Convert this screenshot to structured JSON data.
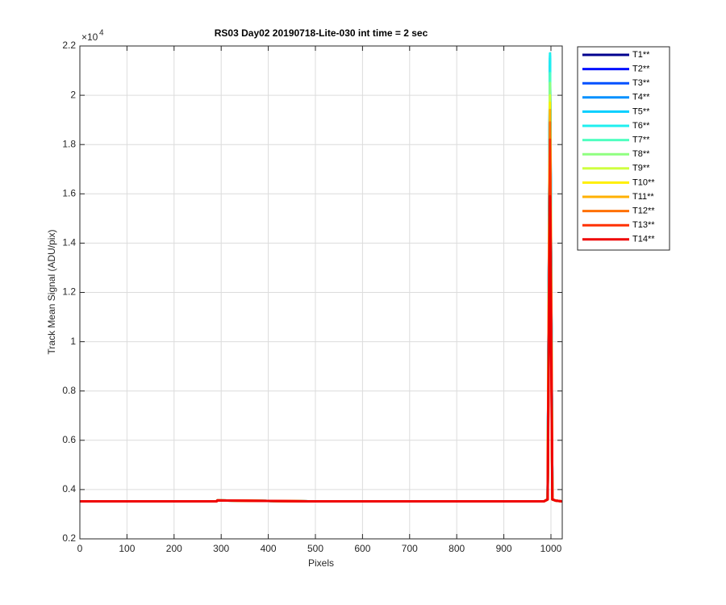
{
  "chart_data": {
    "type": "line",
    "title": "RS03 Day02 20190718-Lite-030 int time = 2 sec",
    "x_label": "Pixels",
    "y_label": "Track Mean Signal (ADU/pix)",
    "y_multiplier": {
      "base": "×10",
      "exponent": "4"
    },
    "x": [
      0,
      290,
      292,
      500,
      985,
      993,
      998,
      1003,
      1010,
      1024
    ],
    "xlim": [
      0,
      1024
    ],
    "xticks": [
      0,
      100,
      200,
      300,
      400,
      500,
      600,
      700,
      800,
      900,
      1000
    ],
    "ylim": [
      0.2,
      2.2
    ],
    "yticks": [
      0.2,
      0.4,
      0.6,
      0.8,
      1,
      1.2,
      1.4,
      1.6,
      1.8,
      2,
      2.2
    ],
    "grid": true,
    "legend": "outside-top-right",
    "series": [
      {
        "name": "T1**",
        "color": "#00008f",
        "values": [
          0.352,
          0.352,
          0.356,
          0.352,
          0.352,
          0.36,
          2.1,
          0.36,
          0.355,
          0.352
        ]
      },
      {
        "name": "T2**",
        "color": "#0010ff",
        "values": [
          0.352,
          0.352,
          0.356,
          0.352,
          0.352,
          0.36,
          2.12,
          0.36,
          0.355,
          0.352
        ]
      },
      {
        "name": "T3**",
        "color": "#0050ff",
        "values": [
          0.352,
          0.352,
          0.356,
          0.352,
          0.352,
          0.36,
          2.14,
          0.36,
          0.355,
          0.352
        ]
      },
      {
        "name": "T4**",
        "color": "#0090ff",
        "values": [
          0.352,
          0.352,
          0.356,
          0.352,
          0.352,
          0.36,
          2.15,
          0.36,
          0.355,
          0.352
        ]
      },
      {
        "name": "T5**",
        "color": "#00cfff",
        "values": [
          0.352,
          0.352,
          0.356,
          0.352,
          0.352,
          0.36,
          2.16,
          0.36,
          0.355,
          0.352
        ]
      },
      {
        "name": "T6**",
        "color": "#20efef",
        "values": [
          0.352,
          0.352,
          0.356,
          0.352,
          0.352,
          0.36,
          2.17,
          0.36,
          0.355,
          0.352
        ]
      },
      {
        "name": "T7**",
        "color": "#50ffc0",
        "values": [
          0.352,
          0.352,
          0.356,
          0.352,
          0.352,
          0.36,
          2.09,
          0.36,
          0.355,
          0.352
        ]
      },
      {
        "name": "T8**",
        "color": "#8fff80",
        "values": [
          0.352,
          0.352,
          0.356,
          0.352,
          0.352,
          0.36,
          2.05,
          0.36,
          0.355,
          0.352
        ]
      },
      {
        "name": "T9**",
        "color": "#cfff40",
        "values": [
          0.352,
          0.352,
          0.356,
          0.352,
          0.352,
          0.36,
          2.0,
          0.36,
          0.355,
          0.352
        ]
      },
      {
        "name": "T10**",
        "color": "#ffef00",
        "values": [
          0.352,
          0.352,
          0.356,
          0.352,
          0.352,
          0.36,
          1.97,
          0.36,
          0.355,
          0.352
        ]
      },
      {
        "name": "T11**",
        "color": "#ffb000",
        "values": [
          0.352,
          0.352,
          0.356,
          0.352,
          0.352,
          0.36,
          1.94,
          0.36,
          0.355,
          0.352
        ]
      },
      {
        "name": "T12**",
        "color": "#ff7000",
        "values": [
          0.352,
          0.352,
          0.356,
          0.352,
          0.352,
          0.36,
          1.89,
          0.36,
          0.355,
          0.352
        ]
      },
      {
        "name": "T13**",
        "color": "#ff3000",
        "values": [
          0.352,
          0.352,
          0.356,
          0.352,
          0.352,
          0.36,
          1.82,
          0.36,
          0.355,
          0.352
        ]
      },
      {
        "name": "T14**",
        "color": "#ef0000",
        "values": [
          0.352,
          0.352,
          0.356,
          0.352,
          0.352,
          0.36,
          1.59,
          0.36,
          0.355,
          0.352
        ]
      }
    ]
  }
}
